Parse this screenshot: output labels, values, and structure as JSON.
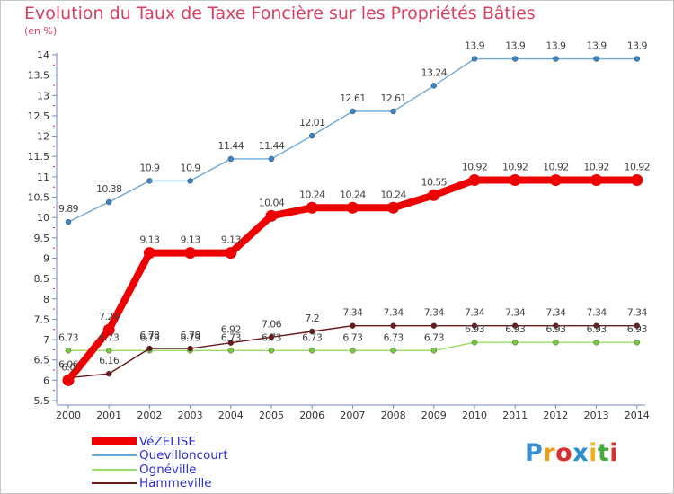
{
  "title": "Evolution du Taux de Taxe Foncière sur les Propriétés Bâties",
  "unit_label": "(en %)",
  "logo": {
    "text": "Proxiti",
    "colors": [
      "#3a8fd0",
      "#e8a020",
      "#d83030",
      "#2a8fd0",
      "#f0b020",
      "#4aa840",
      "#d83030"
    ]
  },
  "legend": [
    {
      "label": "VéZELISE",
      "color": "#ee0000",
      "thickness": 9
    },
    {
      "label": "Quevilloncourt",
      "color": "#6aa8d8",
      "thickness": 2
    },
    {
      "label": "Ognéville",
      "color": "#99dd66",
      "thickness": 2
    },
    {
      "label": "Hammeville",
      "color": "#6b1a1a",
      "thickness": 2
    }
  ],
  "chart_data": {
    "type": "line",
    "title": "Evolution du Taux de Taxe Foncière sur les Propriétés Bâties",
    "ylabel": "(en %)",
    "x": [
      2000,
      2001,
      2002,
      2003,
      2004,
      2005,
      2006,
      2007,
      2008,
      2009,
      2010,
      2011,
      2012,
      2013,
      2014
    ],
    "ylim": [
      5.5,
      14
    ],
    "yticks": [
      5.5,
      6,
      6.5,
      7,
      7.5,
      8,
      8.5,
      9,
      9.5,
      10,
      10.5,
      11,
      11.5,
      12,
      12.5,
      13,
      13.5,
      14
    ],
    "grid": false,
    "legend_position": "bottom-left",
    "series": [
      {
        "name": "Quevilloncourt",
        "color": "#6aa8d8",
        "marker_color": "#3a84c4",
        "values": [
          9.89,
          10.38,
          10.9,
          10.9,
          11.44,
          11.44,
          12.01,
          12.61,
          12.61,
          13.24,
          13.9,
          13.9,
          13.9,
          13.9,
          13.9
        ],
        "labels": [
          "9.89",
          "10.38",
          "10.9",
          "10.9",
          "11.44",
          "11.44",
          "12.01",
          "12.61",
          "12.61",
          "13.24",
          "13.9",
          "13.9",
          "13.9",
          "13.9",
          "13.9"
        ]
      },
      {
        "name": "Ognéville",
        "color": "#99dd66",
        "marker_color": "#77c840",
        "values": [
          6.73,
          6.73,
          6.73,
          6.73,
          6.73,
          6.73,
          6.73,
          6.73,
          6.73,
          6.73,
          6.93,
          6.93,
          6.93,
          6.93,
          6.93
        ],
        "labels": [
          "6.73",
          "6.73",
          "6.73",
          "6.73",
          "6.73",
          "6.73",
          "6.73",
          "6.73",
          "6.73",
          "6.73",
          "6.93",
          "6.93",
          "6.93",
          "6.93",
          "6.93"
        ]
      },
      {
        "name": "Hammeville",
        "color": "#6b1a1a",
        "marker_color": "#6b1a1a",
        "values": [
          6.06,
          6.16,
          6.78,
          6.78,
          6.92,
          7.06,
          7.2,
          7.34,
          7.34,
          7.34,
          7.34,
          7.34,
          7.34,
          7.34,
          7.34
        ],
        "labels": [
          "6.06",
          "6.16",
          "6.78",
          "6.78",
          "6.92",
          "7.06",
          "7.2",
          "7.34",
          "7.34",
          "7.34",
          "7.34",
          "7.34",
          "7.34",
          "7.34",
          "7.34"
        ]
      },
      {
        "name": "VéZELISE",
        "color": "#ee0000",
        "marker_color": "#ee0000",
        "values": [
          6.0,
          7.24,
          9.13,
          9.13,
          9.13,
          10.04,
          10.24,
          10.24,
          10.24,
          10.55,
          10.92,
          10.92,
          10.92,
          10.92,
          10.92
        ],
        "labels": [
          "6.0",
          "7.24",
          "9.13",
          "9.13",
          "9.13",
          "10.04",
          "10.24",
          "10.24",
          "10.24",
          "10.55",
          "10.92",
          "10.92",
          "10.92",
          "10.92",
          "10.92"
        ]
      }
    ]
  }
}
